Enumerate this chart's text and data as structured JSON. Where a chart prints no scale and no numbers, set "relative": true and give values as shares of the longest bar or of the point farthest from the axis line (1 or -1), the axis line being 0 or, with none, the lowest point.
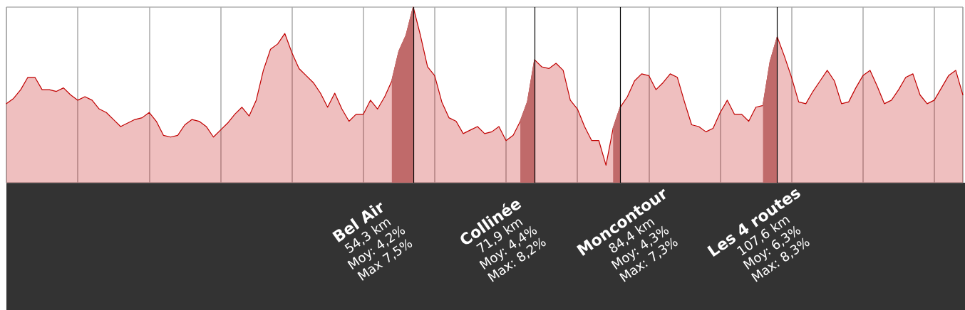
{
  "chart_data": {
    "type": "area",
    "relative": true,
    "grid": "x",
    "categories": [
      null,
      null,
      null,
      null,
      null,
      null,
      null,
      null,
      null,
      null,
      null,
      null,
      null,
      null,
      null,
      null,
      null,
      null,
      null,
      null,
      null,
      null,
      null,
      null,
      null,
      null,
      null,
      null,
      null,
      null,
      null,
      null,
      null,
      null,
      null,
      null,
      null,
      null,
      null,
      null,
      null,
      null,
      null,
      null,
      null,
      null,
      null,
      null,
      null,
      null,
      null,
      null,
      null,
      null,
      null,
      null,
      null,
      null,
      null,
      null,
      null,
      null,
      null,
      null,
      null,
      null,
      null,
      null,
      null,
      null,
      null,
      null,
      null,
      null,
      null,
      null,
      null,
      null,
      null,
      null,
      null,
      null,
      null,
      null,
      null,
      null,
      null,
      null,
      null,
      null,
      null,
      null,
      null,
      null,
      null,
      null,
      null,
      null,
      null,
      null,
      null,
      null,
      null,
      null,
      null,
      null,
      null,
      null,
      null,
      null,
      null,
      null,
      null,
      null,
      null,
      null,
      null,
      null,
      null,
      null,
      null,
      null,
      null,
      null,
      null,
      null,
      null,
      null,
      null,
      null,
      null,
      null,
      null,
      null,
      null
    ],
    "series": [
      {
        "color": "#c00000",
        "values": [
          0.45,
          0.48,
          0.53,
          0.6,
          0.6,
          0.53,
          0.53,
          0.52,
          0.54,
          0.5,
          0.47,
          0.49,
          0.47,
          0.42,
          0.4,
          0.36,
          0.32,
          0.34,
          0.36,
          0.37,
          0.4,
          0.35,
          0.27,
          0.26,
          0.27,
          0.33,
          0.36,
          0.35,
          0.32,
          0.26,
          0.3,
          0.34,
          0.39,
          0.43,
          0.38,
          0.47,
          0.64,
          0.76,
          0.79,
          0.85,
          0.74,
          0.65,
          0.61,
          0.57,
          0.51,
          0.43,
          0.51,
          0.42,
          0.35,
          0.39,
          0.39,
          0.47,
          0.42,
          0.49,
          0.58,
          0.75,
          0.84,
          1,
          0.84,
          0.66,
          0.61,
          0.46,
          0.37,
          0.35,
          0.28,
          0.3,
          0.32,
          0.28,
          0.29,
          0.32,
          0.24,
          0.27,
          0.35,
          0.46,
          0.7,
          0.66,
          0.65,
          0.68,
          0.64,
          0.47,
          0.42,
          0.32,
          0.24,
          0.24,
          0.1,
          0.31,
          0.43,
          0.49,
          0.58,
          0.62,
          0.61,
          0.53,
          0.57,
          0.62,
          0.6,
          0.46,
          0.33,
          0.32,
          0.29,
          0.31,
          0.4,
          0.47,
          0.39,
          0.39,
          0.35,
          0.43,
          0.44,
          0.69,
          0.83,
          0.72,
          0.6,
          0.46,
          0.45,
          0.52,
          0.58,
          0.64,
          0.58,
          0.45,
          0.46,
          0.54,
          0.61,
          0.64,
          0.55,
          0.45,
          0.47,
          0.53,
          0.6,
          0.62,
          0.5,
          0.45,
          0.47,
          0.54,
          0.61,
          0.64,
          0.5
        ]
      },
      {
        "color": "#c06a6a",
        "values": [
          null,
          null,
          null,
          null,
          null,
          null,
          null,
          null,
          null,
          null,
          null,
          null,
          null,
          null,
          null,
          null,
          null,
          null,
          null,
          null,
          null,
          null,
          null,
          null,
          null,
          null,
          null,
          null,
          null,
          null,
          null,
          null,
          null,
          null,
          null,
          null,
          null,
          null,
          null,
          null,
          null,
          null,
          null,
          null,
          null,
          null,
          null,
          null,
          null,
          null,
          null,
          null,
          null,
          null,
          0.58,
          0.75,
          0.84,
          1,
          null,
          null,
          null,
          null,
          null,
          null,
          null,
          null,
          null,
          null,
          null,
          null,
          null,
          null,
          0.35,
          0.46,
          0.7,
          null,
          null,
          null,
          null,
          null,
          null,
          null,
          null,
          null,
          null,
          0.31,
          0.43,
          null,
          null,
          null,
          null,
          null,
          null,
          null,
          null,
          null,
          null,
          null,
          null,
          null,
          null,
          null,
          null,
          null,
          null,
          null,
          0.44,
          0.69,
          0.83,
          null,
          null,
          null,
          null,
          null,
          null,
          null,
          null,
          null,
          null,
          null,
          null,
          null,
          null,
          null,
          null,
          null,
          null,
          null,
          null,
          null,
          null,
          null,
          null,
          null,
          null
        ]
      }
    ],
    "annotations": [
      "Bel Air\n54,3 km\nMoy: 4,2%\nMax 7,5%",
      "Collinée\n71,9 km\nMoy: 4,4%\nMax: 8,2%",
      "Moncontour\n84,4 km\nMoy: 4,3%\nMax: 7,3%",
      "Les 4 routes\n107,6 km\nMoy: 6,3%\nMax: 8,3%"
    ]
  }
}
